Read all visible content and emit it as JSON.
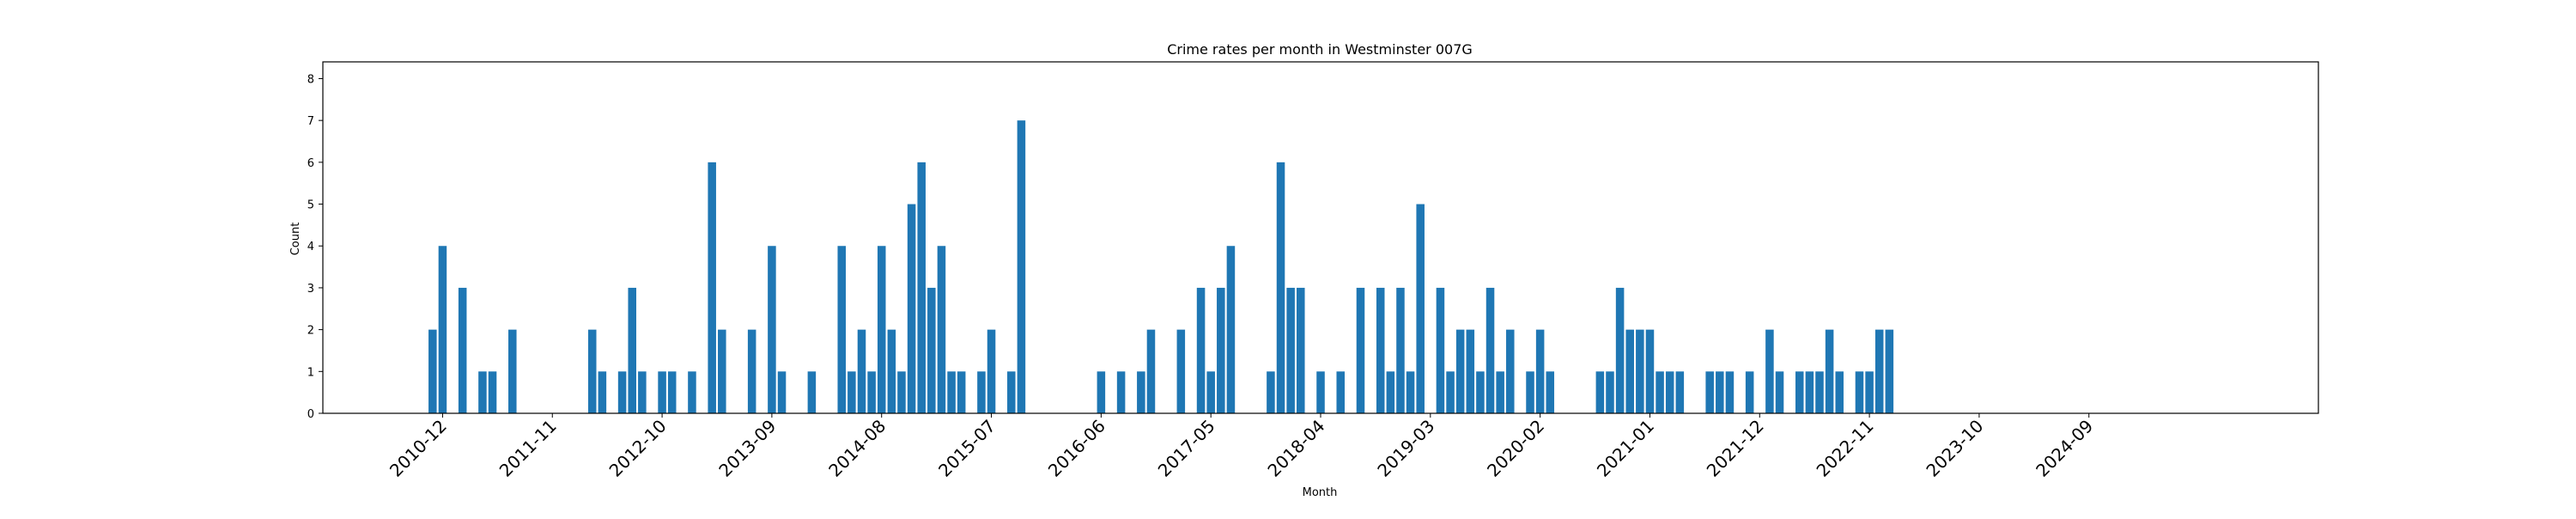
{
  "chart_data": {
    "type": "bar",
    "title": "Crime rates per month in Westminster 007G",
    "xlabel": "Month",
    "ylabel": "Count",
    "ylim": [
      0,
      8.4
    ],
    "xlim": [
      "2009-12",
      "2026-08"
    ],
    "y_ticks": [
      0,
      1,
      2,
      3,
      4,
      5,
      6,
      7,
      8
    ],
    "x_ticks": [
      "2010-12",
      "2011-11",
      "2012-10",
      "2013-09",
      "2014-08",
      "2015-07",
      "2016-06",
      "2017-05",
      "2018-04",
      "2019-03",
      "2020-02",
      "2021-01",
      "2021-12",
      "2022-11",
      "2023-10",
      "2024-09"
    ],
    "grid": false,
    "legend": "none",
    "bar_color": "#1f77b4",
    "series": [
      {
        "x": [
          "2010-11",
          "2010-12",
          "2011-02",
          "2011-04",
          "2011-05",
          "2011-07",
          "2012-03",
          "2012-04",
          "2012-06",
          "2012-07",
          "2012-08",
          "2012-10",
          "2012-11",
          "2013-01",
          "2013-03",
          "2013-04",
          "2013-07",
          "2013-09",
          "2013-10",
          "2014-01",
          "2014-04",
          "2014-05",
          "2014-06",
          "2014-07",
          "2014-08",
          "2014-09",
          "2014-10",
          "2014-11",
          "2014-12",
          "2015-01",
          "2015-02",
          "2015-03",
          "2015-04",
          "2015-06",
          "2015-07",
          "2015-09",
          "2015-10",
          "2016-06",
          "2016-08",
          "2016-10",
          "2016-11",
          "2017-02",
          "2017-04",
          "2017-05",
          "2017-06",
          "2017-07",
          "2017-11",
          "2017-12",
          "2018-01",
          "2018-02",
          "2018-04",
          "2018-06",
          "2018-08",
          "2018-10",
          "2018-11",
          "2018-12",
          "2019-01",
          "2019-02",
          "2019-04",
          "2019-05",
          "2019-06",
          "2019-07",
          "2019-08",
          "2019-09",
          "2019-10",
          "2019-11",
          "2020-01",
          "2020-02",
          "2020-03",
          "2020-08",
          "2020-09",
          "2020-10",
          "2020-11",
          "2020-12",
          "2021-01",
          "2021-02",
          "2021-03",
          "2021-04",
          "2021-07",
          "2021-08",
          "2021-09",
          "2021-11",
          "2022-01",
          "2022-02",
          "2022-04",
          "2022-05",
          "2022-06",
          "2022-07",
          "2022-08",
          "2022-10",
          "2022-11",
          "2022-12",
          "2023-01"
        ],
        "values": [
          2,
          4,
          3,
          1,
          1,
          2,
          2,
          1,
          1,
          3,
          1,
          1,
          1,
          1,
          6,
          2,
          2,
          4,
          1,
          1,
          4,
          1,
          2,
          1,
          4,
          2,
          1,
          5,
          6,
          3,
          4,
          1,
          1,
          1,
          2,
          1,
          7,
          1,
          1,
          1,
          2,
          2,
          3,
          1,
          3,
          4,
          1,
          6,
          3,
          3,
          1,
          1,
          3,
          3,
          1,
          3,
          1,
          5,
          3,
          1,
          2,
          2,
          1,
          3,
          1,
          2,
          1,
          2,
          1,
          1,
          1,
          3,
          2,
          2,
          2,
          1,
          1,
          1,
          1,
          1,
          1,
          1,
          2,
          1,
          1,
          1,
          1,
          2,
          1,
          1,
          1,
          2,
          2
        ]
      }
    ]
  }
}
